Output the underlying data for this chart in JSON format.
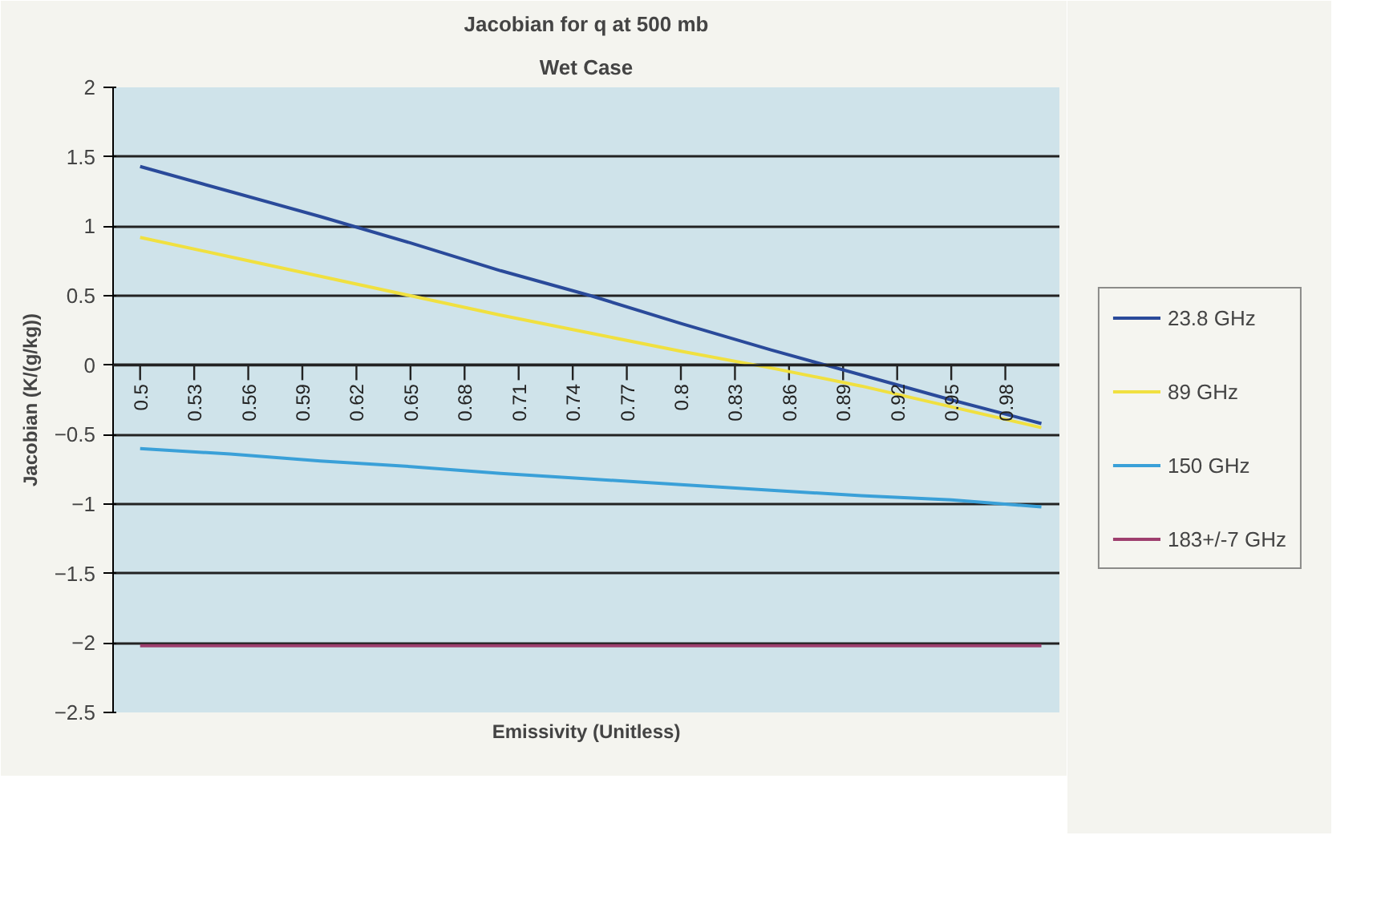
{
  "chart_data": {
    "type": "line",
    "title": "Jacobian for q at 500 mb",
    "subtitle": "Wet Case",
    "xlabel": "Emissivity (Unitless)",
    "ylabel": "Jacobian (K/(g/kg))",
    "x": [
      0.5,
      0.55,
      0.6,
      0.65,
      0.7,
      0.75,
      0.8,
      0.85,
      0.9,
      0.95,
      1.0
    ],
    "series": [
      {
        "name": "23.8 GHz",
        "color": "#2a4a9a",
        "values": [
          1.43,
          1.25,
          1.07,
          0.88,
          0.68,
          0.5,
          0.3,
          0.11,
          -0.07,
          -0.25,
          -0.42
        ]
      },
      {
        "name": "89 GHz",
        "color": "#f0e040",
        "values": [
          0.92,
          0.78,
          0.64,
          0.5,
          0.36,
          0.23,
          0.1,
          -0.02,
          -0.15,
          -0.3,
          -0.45
        ]
      },
      {
        "name": "150 GHz",
        "color": "#3aa0d8",
        "values": [
          -0.6,
          -0.64,
          -0.69,
          -0.73,
          -0.78,
          -0.82,
          -0.86,
          -0.9,
          -0.94,
          -0.97,
          -1.02
        ]
      },
      {
        "name": "183+/-7 GHz",
        "color": "#9e3f6e",
        "values": [
          -2.02,
          -2.02,
          -2.02,
          -2.02,
          -2.02,
          -2.02,
          -2.02,
          -2.02,
          -2.02,
          -2.02,
          -2.02
        ]
      }
    ],
    "xlim": [
      0.485,
      1.01
    ],
    "xticks": [
      0.5,
      0.53,
      0.56,
      0.59,
      0.62,
      0.65,
      0.68,
      0.71,
      0.74,
      0.77,
      0.8,
      0.83,
      0.86,
      0.89,
      0.92,
      0.95,
      0.98
    ],
    "ylim": [
      -2.5,
      2
    ],
    "yticks": [
      -2.5,
      -2,
      -1.5,
      -1,
      -0.5,
      0,
      0.5,
      1,
      1.5,
      2
    ],
    "grid": "y",
    "legend": "right",
    "marker": "none",
    "line_style": "solid"
  }
}
